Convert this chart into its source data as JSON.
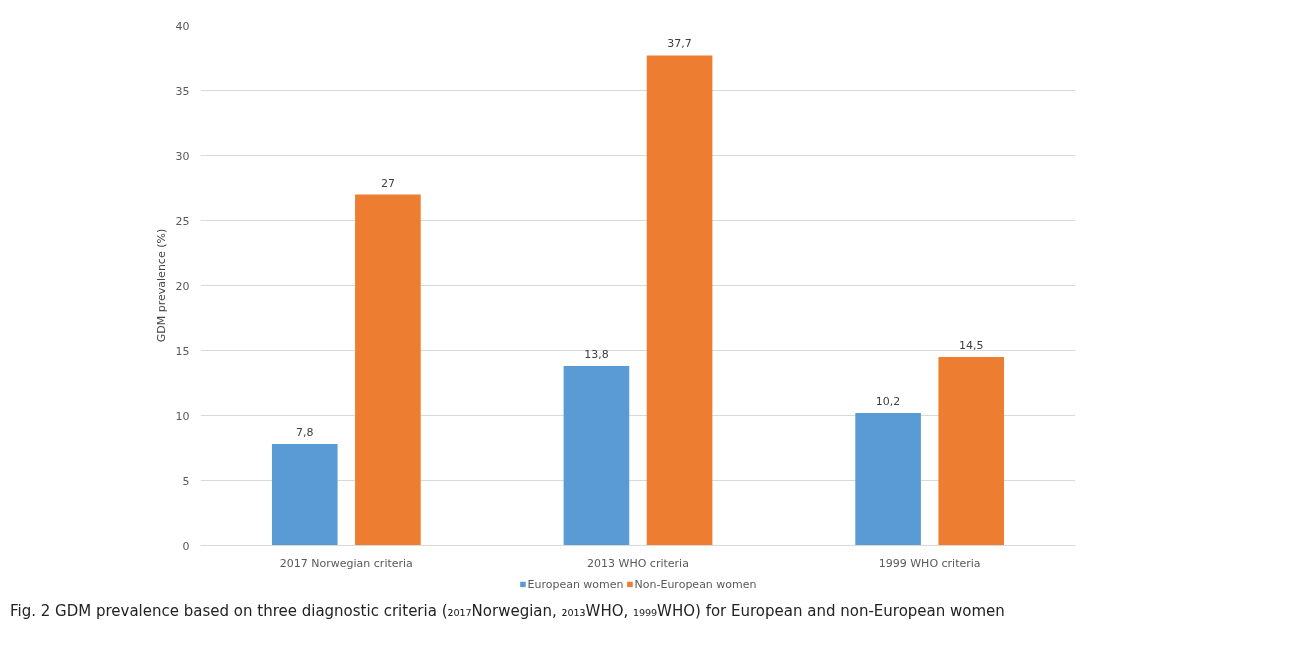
{
  "chart_data": {
    "type": "bar",
    "ylabel": "GDM prevalence (%)",
    "categories": [
      "2017 Norwegian criteria",
      "2013 WHO criteria",
      "1999 WHO criteria"
    ],
    "series": [
      {
        "name": "European women",
        "color": "#5b9bd5",
        "values": [
          7.8,
          13.8,
          10.2
        ],
        "value_labels": [
          "7,8",
          "13,8",
          "10,2"
        ]
      },
      {
        "name": "Non-European women",
        "color": "#ed7d31",
        "values": [
          27,
          37.7,
          14.5
        ],
        "value_labels": [
          "27",
          "37,7",
          "14,5"
        ]
      }
    ],
    "ylim": [
      0,
      40
    ],
    "yticks": [
      0,
      5,
      10,
      15,
      20,
      25,
      30,
      35,
      40
    ],
    "grid": "y",
    "legend": "bottom",
    "annotations": [
      "Fig. 2 GDM prevalence based on three diagnostic criteria (₂₀₁₇Norwegian, ₂₀₁₃WHO, ₁₉₉₉WHO) for European and non-European women"
    ]
  }
}
